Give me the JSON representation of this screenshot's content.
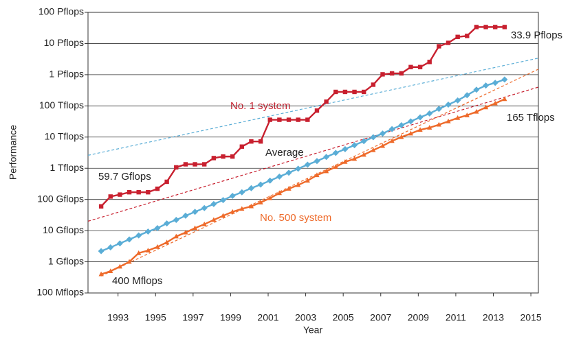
{
  "chart_data": {
    "type": "line",
    "log_scale_y": true,
    "grid": true,
    "xlabel": "Year",
    "ylabel": "Performance",
    "xlim": [
      1991.4,
      2015.4
    ],
    "xticks": [
      1993,
      1995,
      1997,
      1999,
      2001,
      2003,
      2005,
      2007,
      2009,
      2011,
      2013,
      2015
    ],
    "ylim": [
      0.1,
      100000000
    ],
    "yticks": [
      {
        "value": 0.1,
        "label": "100 Mflops"
      },
      {
        "value": 1,
        "label": "1 Gflops"
      },
      {
        "value": 10,
        "label": "10 Gflops"
      },
      {
        "value": 100,
        "label": "100 Gflops"
      },
      {
        "value": 1000,
        "label": "1 Tflops"
      },
      {
        "value": 10000,
        "label": "10 Tflops"
      },
      {
        "value": 100000,
        "label": "100 Tflops"
      },
      {
        "value": 1000000,
        "label": "1 Pflops"
      },
      {
        "value": 10000000,
        "label": "10 Pflops"
      },
      {
        "value": 100000000,
        "label": "100 Pflops"
      }
    ],
    "x": [
      1992.1,
      1992.6,
      1993.1,
      1993.6,
      1994.1,
      1994.6,
      1995.1,
      1995.6,
      1996.1,
      1996.6,
      1997.1,
      1997.6,
      1998.1,
      1998.6,
      1999.1,
      1999.6,
      2000.1,
      2000.6,
      2001.1,
      2001.6,
      2002.1,
      2002.6,
      2003.1,
      2003.6,
      2004.1,
      2004.6,
      2005.1,
      2005.6,
      2006.1,
      2006.6,
      2007.1,
      2007.6,
      2008.1,
      2008.6,
      2009.1,
      2009.6,
      2010.1,
      2010.6,
      2011.1,
      2011.6,
      2012.1,
      2012.6,
      2013.1,
      2013.6
    ],
    "series": [
      {
        "name": "No. 1 system",
        "color": "#c8202f",
        "marker": "square",
        "values": [
          60,
          124,
          143,
          170,
          170,
          170,
          220,
          368,
          1068,
          1338,
          1338,
          1338,
          2121,
          2379,
          2379,
          4938,
          7226,
          7226,
          35860,
          35860,
          35860,
          35860,
          35860,
          70720,
          136800,
          280600,
          280600,
          280600,
          280600,
          478200,
          1026000,
          1105000,
          1105000,
          1759000,
          1759000,
          2566000,
          8162000,
          10510000,
          16320000,
          17590000,
          33860000,
          33860000,
          33860000,
          33860000
        ]
      },
      {
        "name": "Average",
        "color": "#5aadd6",
        "marker": "diamond",
        "values": [
          2.2,
          2.9,
          3.9,
          5.2,
          7,
          9.3,
          12,
          17,
          22,
          30,
          40,
          53,
          71,
          95,
          130,
          170,
          230,
          300,
          400,
          540,
          720,
          970,
          1300,
          1700,
          2300,
          3100,
          4100,
          5500,
          7400,
          9900,
          13000,
          18000,
          24000,
          32000,
          43000,
          57000,
          80000,
          110000,
          150000,
          220000,
          330000,
          450000,
          550000,
          700000
        ]
      },
      {
        "name": "No. 500 system",
        "color": "#ee6a2a",
        "marker": "triangle",
        "values": [
          0.4,
          0.5,
          0.7,
          1,
          1.9,
          2.3,
          3,
          4.2,
          6.5,
          8.7,
          12,
          16,
          22,
          30,
          40,
          50,
          60,
          80,
          110,
          160,
          220,
          290,
          400,
          600,
          800,
          1100,
          1600,
          2000,
          2700,
          3800,
          5200,
          7500,
          10000,
          13000,
          17000,
          20000,
          25000,
          32000,
          41000,
          50000,
          65000,
          90000,
          120000,
          165000
        ]
      }
    ],
    "trendlines": [
      {
        "color": "#c8202f",
        "x": [
          1991.4,
          2015.4
        ],
        "values": [
          20,
          400000
        ]
      },
      {
        "color": "#5aadd6",
        "x": [
          1991.4,
          2015.4
        ],
        "values": [
          2600,
          3400000
        ]
      },
      {
        "color": "#ee6a2a",
        "x": [
          1992.1,
          2015.4
        ],
        "values": [
          0.35,
          1500000
        ]
      }
    ],
    "annotations": [
      "59.7 Gflops",
      "400 Mflops",
      "33.9 Pflops",
      "165 Tflops"
    ]
  }
}
